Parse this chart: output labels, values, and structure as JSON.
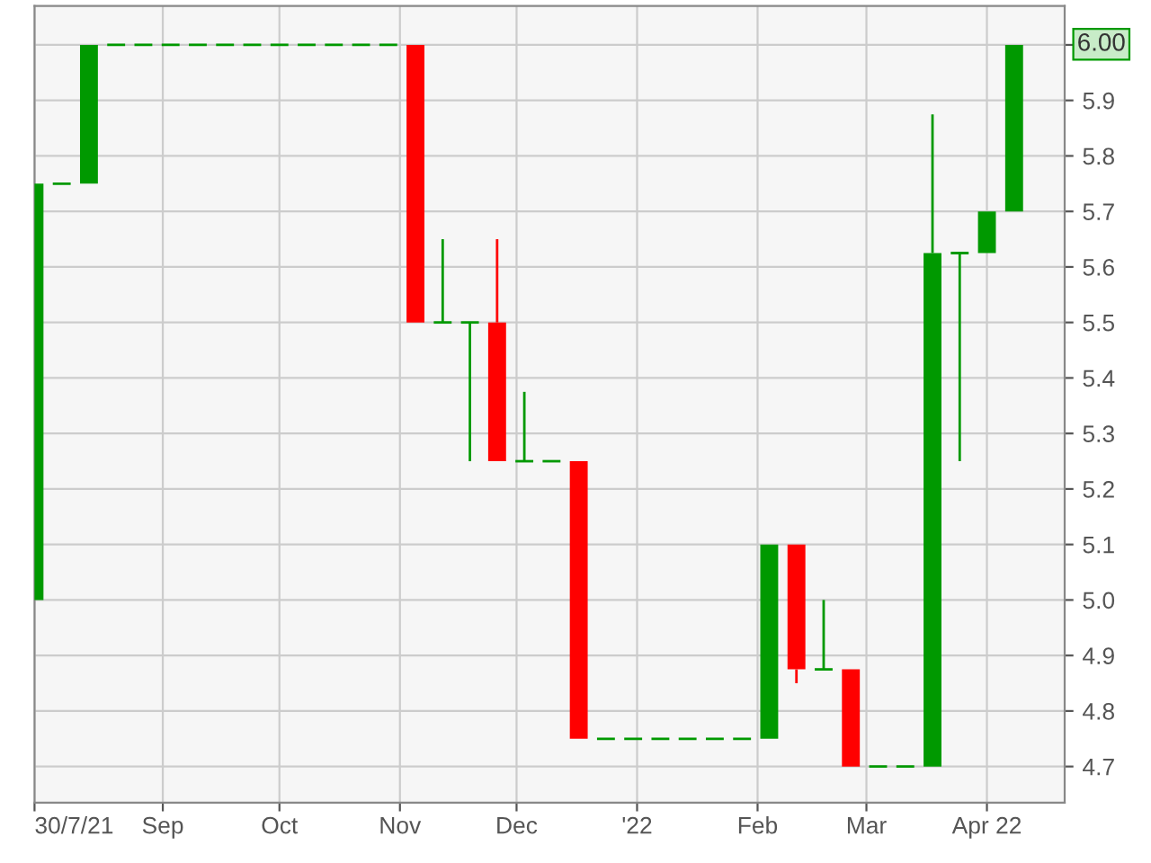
{
  "chart_data": {
    "type": "candlestick",
    "x": [
      "2021-07-30",
      "2021-08-06",
      "2021-08-13",
      "2021-08-20",
      "2021-08-27",
      "2021-09-03",
      "2021-09-10",
      "2021-09-17",
      "2021-09-24",
      "2021-10-01",
      "2021-10-08",
      "2021-10-15",
      "2021-10-22",
      "2021-10-29",
      "2021-11-05",
      "2021-11-12",
      "2021-11-19",
      "2021-11-26",
      "2021-12-03",
      "2021-12-10",
      "2021-12-17",
      "2021-12-24",
      "2021-12-31",
      "2022-01-07",
      "2022-01-14",
      "2022-01-21",
      "2022-01-28",
      "2022-02-04",
      "2022-02-11",
      "2022-02-18",
      "2022-02-25",
      "2022-03-04",
      "2022-03-11",
      "2022-03-18",
      "2022-03-25",
      "2022-04-01",
      "2022-04-08"
    ],
    "ohlc": [
      [
        5.0,
        5.75,
        5.0,
        5.75
      ],
      [
        5.75,
        5.75,
        5.75,
        5.75
      ],
      [
        5.75,
        6.0,
        5.75,
        6.0
      ],
      [
        6.0,
        6.0,
        6.0,
        6.0
      ],
      [
        6.0,
        6.0,
        6.0,
        6.0
      ],
      [
        6.0,
        6.0,
        6.0,
        6.0
      ],
      [
        6.0,
        6.0,
        6.0,
        6.0
      ],
      [
        6.0,
        6.0,
        6.0,
        6.0
      ],
      [
        6.0,
        6.0,
        6.0,
        6.0
      ],
      [
        6.0,
        6.0,
        6.0,
        6.0
      ],
      [
        6.0,
        6.0,
        6.0,
        6.0
      ],
      [
        6.0,
        6.0,
        6.0,
        6.0
      ],
      [
        6.0,
        6.0,
        6.0,
        6.0
      ],
      [
        6.0,
        6.0,
        6.0,
        6.0
      ],
      [
        6.0,
        6.0,
        5.5,
        5.5
      ],
      [
        5.5,
        5.65,
        5.5,
        5.5
      ],
      [
        5.5,
        5.5,
        5.25,
        5.5
      ],
      [
        5.5,
        5.65,
        5.25,
        5.25
      ],
      [
        5.25,
        5.375,
        5.25,
        5.25
      ],
      [
        5.25,
        5.25,
        5.25,
        5.25
      ],
      [
        5.25,
        5.25,
        4.75,
        4.75
      ],
      [
        4.75,
        4.75,
        4.75,
        4.75
      ],
      [
        4.75,
        4.75,
        4.75,
        4.75
      ],
      [
        4.75,
        4.75,
        4.75,
        4.75
      ],
      [
        4.75,
        4.75,
        4.75,
        4.75
      ],
      [
        4.75,
        4.75,
        4.75,
        4.75
      ],
      [
        4.75,
        4.75,
        4.75,
        4.75
      ],
      [
        4.75,
        5.1,
        4.75,
        5.1
      ],
      [
        5.1,
        5.1,
        4.85,
        4.875
      ],
      [
        4.875,
        5.0,
        4.875,
        4.875
      ],
      [
        4.875,
        4.875,
        4.7,
        4.7
      ],
      [
        4.7,
        4.7,
        4.7,
        4.7
      ],
      [
        4.7,
        4.7,
        4.7,
        4.7
      ],
      [
        4.7,
        5.875,
        4.7,
        5.625
      ],
      [
        5.625,
        5.625,
        5.25,
        5.625
      ],
      [
        5.625,
        5.7,
        5.625,
        5.7
      ],
      [
        5.7,
        6.0,
        5.7,
        6.0
      ]
    ],
    "colors": [
      "#009900",
      "#009900",
      "#009900",
      "#009900",
      "#009900",
      "#009900",
      "#009900",
      "#009900",
      "#009900",
      "#009900",
      "#009900",
      "#009900",
      "#009900",
      "#009900",
      "#ff0000",
      "#009900",
      "#009900",
      "#ff0000",
      "#009900",
      "#009900",
      "#ff0000",
      "#009900",
      "#009900",
      "#009900",
      "#009900",
      "#009900",
      "#009900",
      "#009900",
      "#ff0000",
      "#009900",
      "#ff0000",
      "#009900",
      "#009900",
      "#009900",
      "#009900",
      "#009900",
      "#009900"
    ],
    "xlim": [
      "2021-07-30",
      "2022-04-21"
    ],
    "xticks": [
      {
        "value": "2021-07-30",
        "label": "30/7/21"
      },
      {
        "value": "2021-09-01",
        "label": "Sep"
      },
      {
        "value": "2021-10-01",
        "label": "Oct"
      },
      {
        "value": "2021-11-01",
        "label": "Nov"
      },
      {
        "value": "2021-12-01",
        "label": "Dec"
      },
      {
        "value": "2022-01-01",
        "label": "'22"
      },
      {
        "value": "2022-02-01",
        "label": "Feb"
      },
      {
        "value": "2022-03-01",
        "label": "Mar"
      },
      {
        "value": "2022-04-01",
        "label": "Apr 22"
      }
    ],
    "ylim": [
      4.635,
      6.07
    ],
    "yticks": [
      4.7,
      4.8,
      4.9,
      {
        "value": 5.0,
        "label": "5.0"
      },
      5.1,
      5.2,
      5.3,
      5.4,
      5.5,
      5.6,
      5.7,
      5.8,
      5.9,
      {
        "value": 6.0,
        "label": null
      }
    ],
    "annotations": [
      "6.00"
    ],
    "grid": true
  }
}
